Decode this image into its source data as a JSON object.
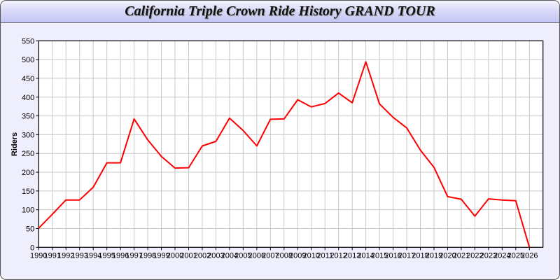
{
  "chart_data": {
    "type": "line",
    "title": "California Triple Crown Ride History GRAND TOUR",
    "xlabel": "",
    "ylabel": "Riders",
    "ylim": [
      0,
      550
    ],
    "yticks": [
      0,
      50,
      100,
      150,
      200,
      250,
      300,
      350,
      400,
      450,
      500,
      550
    ],
    "grid": true,
    "x": [
      1990,
      1991,
      1992,
      1993,
      1994,
      1995,
      1996,
      1997,
      1998,
      1999,
      2000,
      2001,
      2002,
      2003,
      2004,
      2005,
      2006,
      2007,
      2008,
      2009,
      2010,
      2011,
      2012,
      2013,
      2014,
      2015,
      2016,
      2017,
      2018,
      2019,
      2020,
      2021,
      2022,
      2023,
      2024,
      2025,
      2026
    ],
    "series": [
      {
        "values": [
          51,
          88,
          126,
          126,
          160,
          225,
          225,
          342,
          286,
          242,
          211,
          212,
          270,
          282,
          344,
          311,
          270,
          341,
          342,
          393,
          374,
          383,
          411,
          385,
          494,
          382,
          346,
          318,
          259,
          213,
          135,
          128,
          83,
          129,
          126,
          124,
          0
        ],
        "color": "#ff0000"
      }
    ]
  }
}
